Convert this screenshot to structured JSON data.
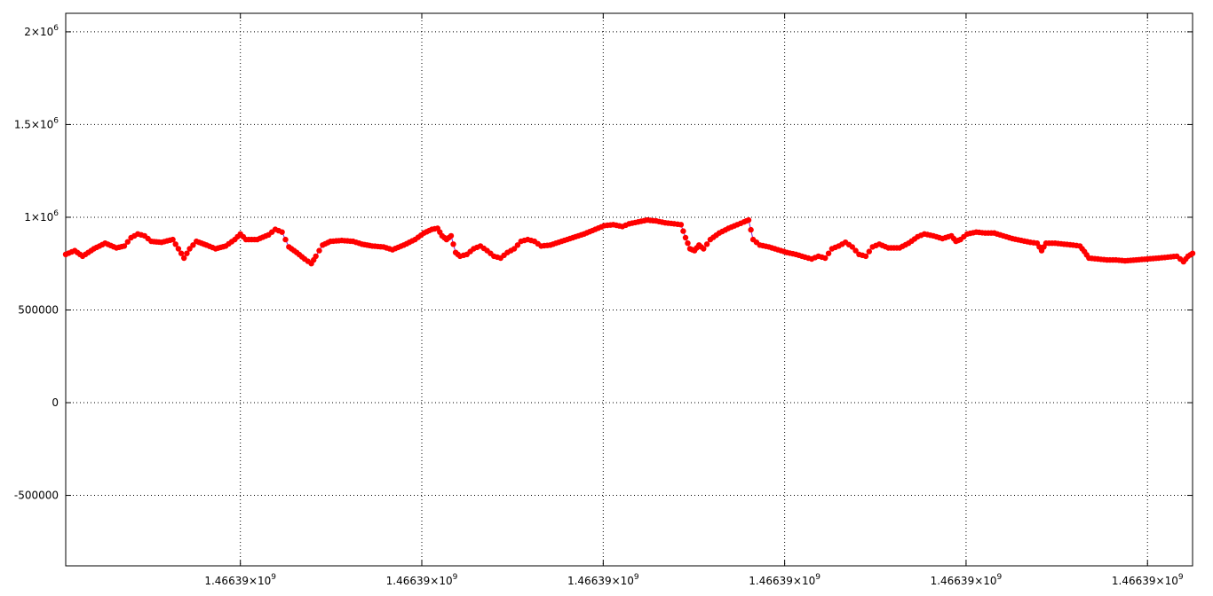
{
  "chart_data": {
    "type": "line",
    "title": "",
    "xlabel": "",
    "ylabel": "",
    "grid": true,
    "legend": "none",
    "colors": {
      "line": "#7b22d6",
      "points": "#ff0000",
      "grid": "#000000",
      "axis": "#000000"
    },
    "x_ticks": [
      "1.46639×10⁹",
      "1.46639×10⁹",
      "1.46639×10⁹",
      "1.46639×10⁹",
      "1.46639×10⁹",
      "1.46639×10⁹"
    ],
    "y_ticks": [
      {
        "value": -500000,
        "label": "-500000"
      },
      {
        "value": 0,
        "label": "0"
      },
      {
        "value": 500000,
        "label": "500000"
      },
      {
        "value": 1000000,
        "label": "1×10⁶"
      },
      {
        "value": 1500000,
        "label": "1.5×10⁶"
      },
      {
        "value": 2000000,
        "label": "2×10⁶"
      }
    ],
    "ylim": [
      -880000,
      2100000
    ],
    "xlim": [
      0,
      1
    ],
    "x_tick_positions": [
      0.155,
      0.316,
      0.477,
      0.638,
      0.799,
      0.96
    ],
    "series": [
      {
        "values": [
          [
            0.0,
            800000
          ],
          [
            0.008,
            820000
          ],
          [
            0.015,
            790000
          ],
          [
            0.025,
            830000
          ],
          [
            0.035,
            860000
          ],
          [
            0.045,
            835000
          ],
          [
            0.052,
            845000
          ],
          [
            0.058,
            890000
          ],
          [
            0.064,
            910000
          ],
          [
            0.07,
            900000
          ],
          [
            0.076,
            870000
          ],
          [
            0.085,
            865000
          ],
          [
            0.095,
            880000
          ],
          [
            0.1,
            830000
          ],
          [
            0.105,
            780000
          ],
          [
            0.11,
            830000
          ],
          [
            0.116,
            870000
          ],
          [
            0.125,
            850000
          ],
          [
            0.133,
            830000
          ],
          [
            0.142,
            845000
          ],
          [
            0.15,
            880000
          ],
          [
            0.155,
            910000
          ],
          [
            0.16,
            880000
          ],
          [
            0.17,
            880000
          ],
          [
            0.18,
            905000
          ],
          [
            0.186,
            935000
          ],
          [
            0.192,
            920000
          ],
          [
            0.198,
            840000
          ],
          [
            0.205,
            810000
          ],
          [
            0.212,
            775000
          ],
          [
            0.218,
            750000
          ],
          [
            0.222,
            790000
          ],
          [
            0.228,
            850000
          ],
          [
            0.235,
            870000
          ],
          [
            0.245,
            875000
          ],
          [
            0.255,
            870000
          ],
          [
            0.263,
            855000
          ],
          [
            0.272,
            845000
          ],
          [
            0.282,
            840000
          ],
          [
            0.29,
            825000
          ],
          [
            0.3,
            850000
          ],
          [
            0.31,
            880000
          ],
          [
            0.318,
            915000
          ],
          [
            0.325,
            935000
          ],
          [
            0.33,
            940000
          ],
          [
            0.334,
            900000
          ],
          [
            0.338,
            880000
          ],
          [
            0.342,
            900000
          ],
          [
            0.346,
            810000
          ],
          [
            0.35,
            790000
          ],
          [
            0.356,
            800000
          ],
          [
            0.362,
            830000
          ],
          [
            0.368,
            845000
          ],
          [
            0.374,
            820000
          ],
          [
            0.38,
            790000
          ],
          [
            0.386,
            780000
          ],
          [
            0.392,
            810000
          ],
          [
            0.398,
            830000
          ],
          [
            0.404,
            870000
          ],
          [
            0.41,
            880000
          ],
          [
            0.416,
            870000
          ],
          [
            0.422,
            845000
          ],
          [
            0.43,
            850000
          ],
          [
            0.44,
            870000
          ],
          [
            0.45,
            890000
          ],
          [
            0.46,
            910000
          ],
          [
            0.47,
            935000
          ],
          [
            0.478,
            955000
          ],
          [
            0.486,
            960000
          ],
          [
            0.494,
            950000
          ],
          [
            0.5,
            965000
          ],
          [
            0.508,
            975000
          ],
          [
            0.516,
            985000
          ],
          [
            0.524,
            980000
          ],
          [
            0.532,
            970000
          ],
          [
            0.54,
            965000
          ],
          [
            0.546,
            960000
          ],
          [
            0.55,
            890000
          ],
          [
            0.554,
            830000
          ],
          [
            0.558,
            820000
          ],
          [
            0.562,
            850000
          ],
          [
            0.566,
            830000
          ],
          [
            0.572,
            880000
          ],
          [
            0.58,
            915000
          ],
          [
            0.588,
            940000
          ],
          [
            0.596,
            960000
          ],
          [
            0.602,
            975000
          ],
          [
            0.606,
            985000
          ],
          [
            0.61,
            880000
          ],
          [
            0.616,
            850000
          ],
          [
            0.624,
            840000
          ],
          [
            0.632,
            825000
          ],
          [
            0.64,
            810000
          ],
          [
            0.648,
            800000
          ],
          [
            0.656,
            785000
          ],
          [
            0.662,
            775000
          ],
          [
            0.668,
            790000
          ],
          [
            0.674,
            780000
          ],
          [
            0.68,
            830000
          ],
          [
            0.686,
            845000
          ],
          [
            0.692,
            865000
          ],
          [
            0.698,
            840000
          ],
          [
            0.704,
            800000
          ],
          [
            0.71,
            790000
          ],
          [
            0.716,
            840000
          ],
          [
            0.722,
            855000
          ],
          [
            0.73,
            835000
          ],
          [
            0.74,
            835000
          ],
          [
            0.748,
            860000
          ],
          [
            0.756,
            895000
          ],
          [
            0.762,
            910000
          ],
          [
            0.77,
            900000
          ],
          [
            0.778,
            885000
          ],
          [
            0.786,
            900000
          ],
          [
            0.79,
            870000
          ],
          [
            0.794,
            880000
          ],
          [
            0.8,
            910000
          ],
          [
            0.808,
            920000
          ],
          [
            0.816,
            915000
          ],
          [
            0.824,
            915000
          ],
          [
            0.832,
            900000
          ],
          [
            0.84,
            885000
          ],
          [
            0.848,
            875000
          ],
          [
            0.856,
            865000
          ],
          [
            0.862,
            860000
          ],
          [
            0.866,
            820000
          ],
          [
            0.87,
            860000
          ],
          [
            0.878,
            860000
          ],
          [
            0.886,
            855000
          ],
          [
            0.894,
            850000
          ],
          [
            0.9,
            845000
          ],
          [
            0.904,
            815000
          ],
          [
            0.908,
            780000
          ],
          [
            0.916,
            775000
          ],
          [
            0.924,
            770000
          ],
          [
            0.932,
            770000
          ],
          [
            0.94,
            765000
          ],
          [
            0.95,
            770000
          ],
          [
            0.96,
            775000
          ],
          [
            0.97,
            780000
          ],
          [
            0.978,
            785000
          ],
          [
            0.986,
            790000
          ],
          [
            0.992,
            760000
          ],
          [
            0.996,
            790000
          ],
          [
            1.0,
            805000
          ]
        ]
      }
    ]
  }
}
